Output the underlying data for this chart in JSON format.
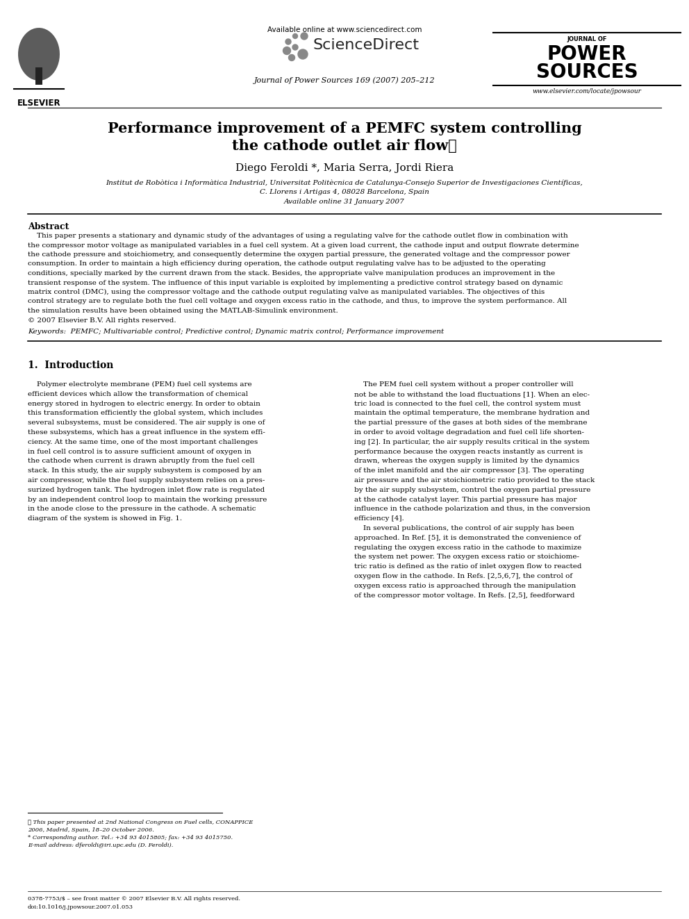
{
  "title_line1": "Performance improvement of a PEMFC system controlling",
  "title_line2": "the cathode outlet air flow★",
  "authors": "Diego Feroldi *, Maria Serra, Jordi Riera",
  "affiliation1": "Institut de Robòtica i Informàtica Industrial, Universitat Politècnica de Catalunya-Consejo Superior de Investigaciones Científicas,",
  "affiliation2": "C. Llorens i Artigas 4, 08028 Barcelona, Spain",
  "available_online": "Available online 31 January 2007",
  "available_online_top": "Available online at www.sciencedirect.com",
  "sciencedirect": "ScienceDirect",
  "journal_name": "Journal of Power Sources 169 (2007) 205–212",
  "journal_logo_line1": "JOURNAL OF",
  "journal_logo_line2": "POWER",
  "journal_logo_line3": "SOURCES",
  "journal_url": "www.elsevier.com/locate/jpowsour",
  "abstract_title": "Abstract",
  "abstract_text_lines": [
    "    This paper presents a stationary and dynamic study of the advantages of using a regulating valve for the cathode outlet flow in combination with",
    "the compressor motor voltage as manipulated variables in a fuel cell system. At a given load current, the cathode input and output flowrate determine",
    "the cathode pressure and stoichiometry, and consequently determine the oxygen partial pressure, the generated voltage and the compressor power",
    "consumption. In order to maintain a high efficiency during operation, the cathode output regulating valve has to be adjusted to the operating",
    "conditions, specially marked by the current drawn from the stack. Besides, the appropriate valve manipulation produces an improvement in the",
    "transient response of the system. The influence of this input variable is exploited by implementing a predictive control strategy based on dynamic",
    "matrix control (DMC), using the compressor voltage and the cathode output regulating valve as manipulated variables. The objectives of this",
    "control strategy are to regulate both the fuel cell voltage and oxygen excess ratio in the cathode, and thus, to improve the system performance. All",
    "the simulation results have been obtained using the MATLAB-Simulink environment.",
    "© 2007 Elsevier B.V. All rights reserved."
  ],
  "keywords": "Keywords:  PEMFC; Multivariable control; Predictive control; Dynamic matrix control; Performance improvement",
  "section1_title": "1.  Introduction",
  "section1_left_lines": [
    "    Polymer electrolyte membrane (PEM) fuel cell systems are",
    "efficient devices which allow the transformation of chemical",
    "energy stored in hydrogen to electric energy. In order to obtain",
    "this transformation efficiently the global system, which includes",
    "several subsystems, must be considered. The air supply is one of",
    "these subsystems, which has a great influence in the system effi-",
    "ciency. At the same time, one of the most important challenges",
    "in fuel cell control is to assure sufficient amount of oxygen in",
    "the cathode when current is drawn abruptly from the fuel cell",
    "stack. In this study, the air supply subsystem is composed by an",
    "air compressor, while the fuel supply subsystem relies on a pres-",
    "surized hydrogen tank. The hydrogen inlet flow rate is regulated",
    "by an independent control loop to maintain the working pressure",
    "in the anode close to the pressure in the cathode. A schematic",
    "diagram of the system is showed in Fig. 1."
  ],
  "section1_right_lines": [
    "    The PEM fuel cell system without a proper controller will",
    "not be able to withstand the load fluctuations [1]. When an elec-",
    "tric load is connected to the fuel cell, the control system must",
    "maintain the optimal temperature, the membrane hydration and",
    "the partial pressure of the gases at both sides of the membrane",
    "in order to avoid voltage degradation and fuel cell life shorten-",
    "ing [2]. In particular, the air supply results critical in the system",
    "performance because the oxygen reacts instantly as current is",
    "drawn, whereas the oxygen supply is limited by the dynamics",
    "of the inlet manifold and the air compressor [3]. The operating",
    "air pressure and the air stoichiometric ratio provided to the stack",
    "by the air supply subsystem, control the oxygen partial pressure",
    "at the cathode catalyst layer. This partial pressure has major",
    "influence in the cathode polarization and thus, in the conversion",
    "efficiency [4].",
    "    In several publications, the control of air supply has been",
    "approached. In Ref. [5], it is demonstrated the convenience of",
    "regulating the oxygen excess ratio in the cathode to maximize",
    "the system net power. The oxygen excess ratio or stoichiome-",
    "tric ratio is defined as the ratio of inlet oxygen flow to reacted",
    "oxygen flow in the cathode. In Refs. [2,5,6,7], the control of",
    "oxygen excess ratio is approached through the manipulation",
    "of the compressor motor voltage. In Refs. [2,5], feedforward"
  ],
  "footnote_lines": [
    "★ This paper presented at 2nd National Congress on Fuel cells, CONAPPICE",
    "2006, Madrid, Spain, 18–20 October 2006.",
    "* Corresponding author. Tel.: +34 93 4015805; fax: +34 93 4015750.",
    "E-mail address: dferoldi@iri.upc.edu (D. Feroldi)."
  ],
  "footer1": "0378-7753/$ – see front matter © 2007 Elsevier B.V. All rights reserved.",
  "footer2": "doi:10.1016/j.jpowsour.2007.01.053",
  "bg_color": "#ffffff"
}
